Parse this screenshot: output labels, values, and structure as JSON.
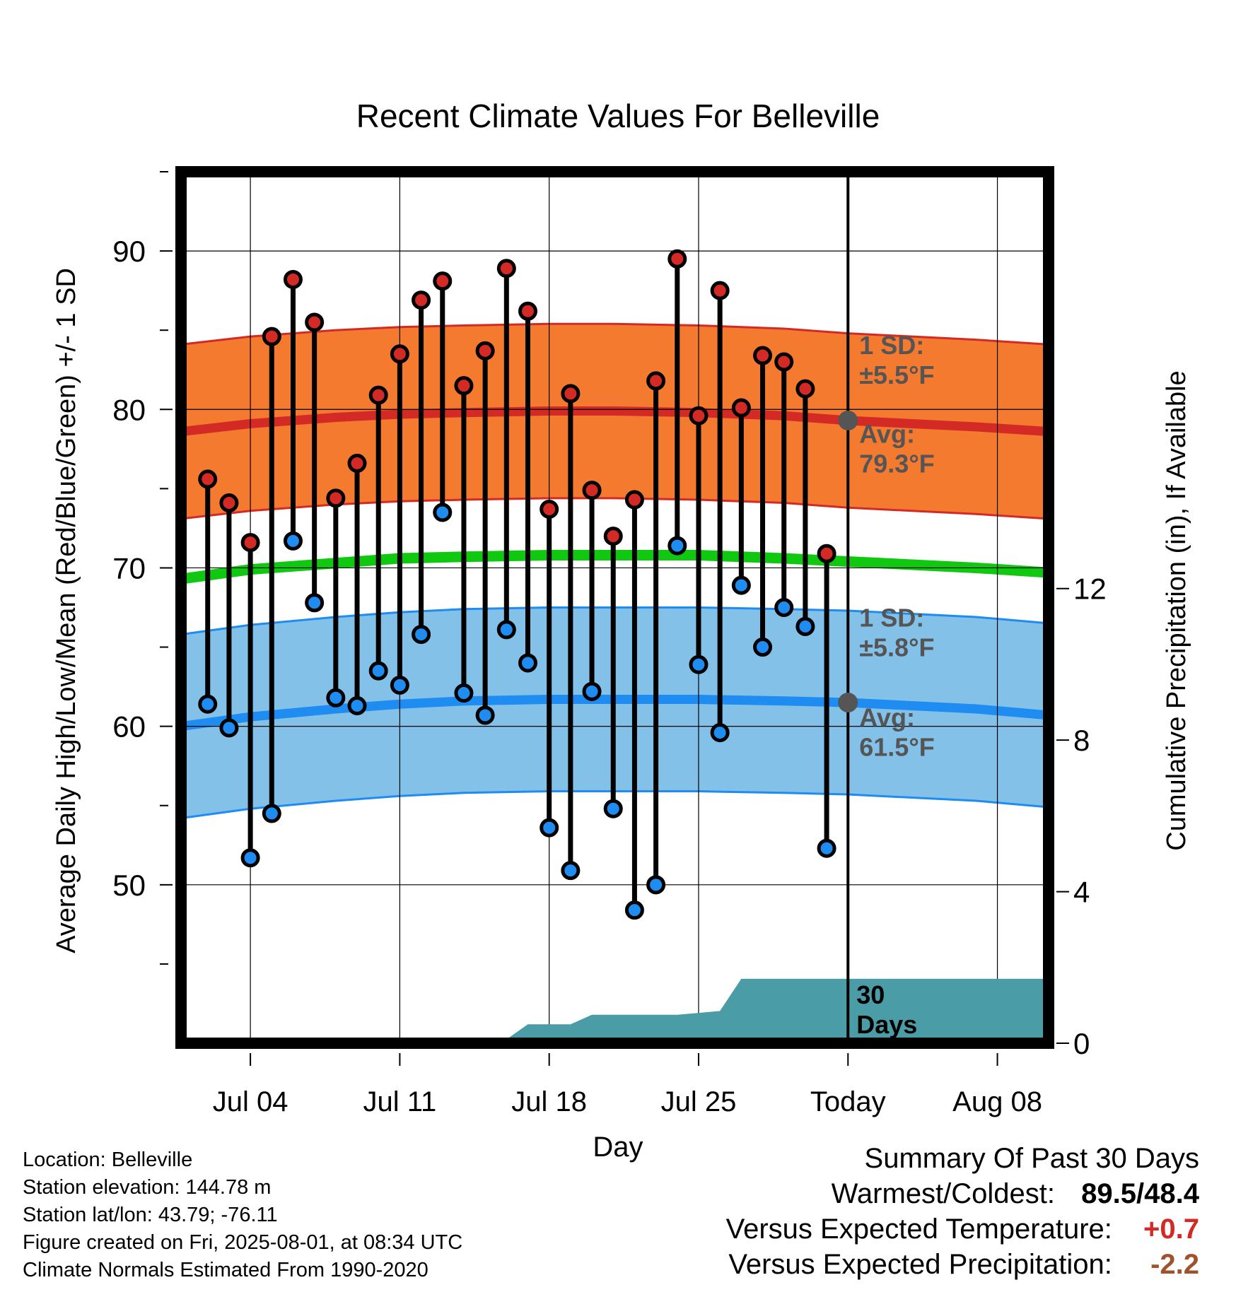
{
  "chart_data": {
    "type": "line",
    "title": "Recent Climate Values For Belleville",
    "xlabel": "Day",
    "ylabel": "Average Daily High/Low/Mean (Red/Blue/Green) +/- 1 SD",
    "y2label": "Cumulative Precipitation (in), If Available",
    "ylim": [
      40,
      95
    ],
    "y2lim": [
      0,
      23
    ],
    "yticks": [
      50,
      60,
      70,
      80,
      90
    ],
    "y2ticks": [
      0,
      4,
      8,
      12
    ],
    "grid": true,
    "x_ticks": [
      {
        "label": "Jul 04",
        "day": 4
      },
      {
        "label": "Jul 11",
        "day": 11
      },
      {
        "label": "Jul 18",
        "day": 18
      },
      {
        "label": "Jul 25",
        "day": 25
      },
      {
        "label": "Today",
        "day": 32
      },
      {
        "label": "Aug 08",
        "day": 39
      }
    ],
    "xlim": [
      0.75,
      41.4
    ],
    "today_day": 32,
    "daily": {
      "days": [
        2,
        3,
        4,
        5,
        6,
        7,
        8,
        9,
        10,
        11,
        12,
        13,
        14,
        15,
        16,
        17,
        18,
        19,
        20,
        21,
        22,
        23,
        24,
        25,
        26,
        27,
        28,
        29,
        30,
        31
      ],
      "highs": [
        75.6,
        74.1,
        71.6,
        84.6,
        88.2,
        85.5,
        74.4,
        76.6,
        80.9,
        83.5,
        86.9,
        88.1,
        81.5,
        83.7,
        88.9,
        86.2,
        73.7,
        81.0,
        74.9,
        72.0,
        74.3,
        81.8,
        89.5,
        79.6,
        87.5,
        80.1,
        83.4,
        83.0,
        81.3,
        70.9
      ],
      "lows": [
        61.4,
        59.9,
        51.7,
        54.5,
        71.7,
        67.8,
        61.8,
        61.3,
        63.5,
        62.6,
        65.8,
        73.5,
        62.1,
        60.7,
        66.1,
        64.0,
        53.6,
        50.9,
        62.2,
        54.8,
        48.4,
        50.0,
        71.4,
        63.9,
        59.6,
        68.9,
        65.0,
        67.5,
        66.3,
        52.3
      ]
    },
    "normals": {
      "days": [
        0.75,
        4,
        8,
        11,
        14,
        18,
        21,
        25,
        29,
        32,
        35,
        38,
        41.4
      ],
      "high_avg": [
        78.6,
        79.1,
        79.5,
        79.7,
        79.8,
        79.9,
        79.9,
        79.8,
        79.6,
        79.3,
        79.1,
        78.9,
        78.6
      ],
      "low_avg": [
        60.0,
        60.6,
        61.1,
        61.4,
        61.6,
        61.7,
        61.7,
        61.7,
        61.6,
        61.5,
        61.3,
        61.1,
        60.7
      ],
      "mean_avg": [
        69.3,
        69.9,
        70.3,
        70.6,
        70.7,
        70.8,
        70.8,
        70.8,
        70.6,
        70.4,
        70.2,
        70.0,
        69.7
      ],
      "high_sd": 5.5,
      "low_sd": 5.8
    },
    "precip": {
      "days": [
        0.75,
        2,
        3,
        4,
        5,
        6,
        7,
        8,
        9,
        10,
        11,
        12,
        13,
        14,
        15,
        16,
        17,
        18,
        19,
        20,
        21,
        22,
        23,
        24,
        25,
        26,
        27,
        28,
        29,
        30,
        31,
        32,
        33,
        34,
        35,
        36,
        37,
        38,
        39,
        40,
        41.4
      ],
      "cumulative": [
        0,
        0,
        0.05,
        0.05,
        0.05,
        0.05,
        0.05,
        0.05,
        0.05,
        0.05,
        0.05,
        0.05,
        0.05,
        0.08,
        0.08,
        0.1,
        0.5,
        0.5,
        0.5,
        0.75,
        0.75,
        0.75,
        0.75,
        0.75,
        0.8,
        0.85,
        1.7,
        1.7,
        1.7,
        1.7,
        1.7,
        1.7,
        1.7,
        1.7,
        1.7,
        1.7,
        1.7,
        1.7,
        1.7,
        1.7,
        1.7
      ]
    },
    "annotations": {
      "high_sd_label": [
        "1 SD:",
        "±5.5°F"
      ],
      "high_avg_label": [
        "Avg:",
        "79.3°F"
      ],
      "low_sd_label": [
        "1 SD:",
        "±5.8°F"
      ],
      "low_avg_label": [
        "Avg:",
        "61.5°F"
      ],
      "days_label": [
        "30",
        "Days"
      ]
    },
    "colors": {
      "high_band": "#f47a30",
      "high_line": "#d42a25",
      "mean_line": "#10c810",
      "low_band": "#83c1e8",
      "low_line": "#1e8cf0",
      "precip": "#4a9ca6",
      "high_dot": "#d42a25",
      "low_dot": "#1e8cf0",
      "annotation": "#555555"
    }
  },
  "info": {
    "lines": [
      "Location: Belleville",
      "Station elevation: 144.78 m",
      "Station lat/lon: 43.79; -76.11",
      "Figure created on Fri, 2025-08-01, at 08:34 UTC",
      "Climate Normals Estimated From 1990-2020"
    ]
  },
  "summary": {
    "heading": "Summary Of Past 30 Days",
    "warmest_label": "Warmest/Coldest:",
    "warmest_high": "89.5",
    "warmest_sep": "/",
    "warmest_low": "48.4",
    "temp_label": "Versus Expected Temperature:",
    "temp_value": "+0.7",
    "temp_color": "#d42a25",
    "precip_label": "Versus Expected Precipitation:",
    "precip_value": "-2.2",
    "precip_color": "#a0522d"
  }
}
